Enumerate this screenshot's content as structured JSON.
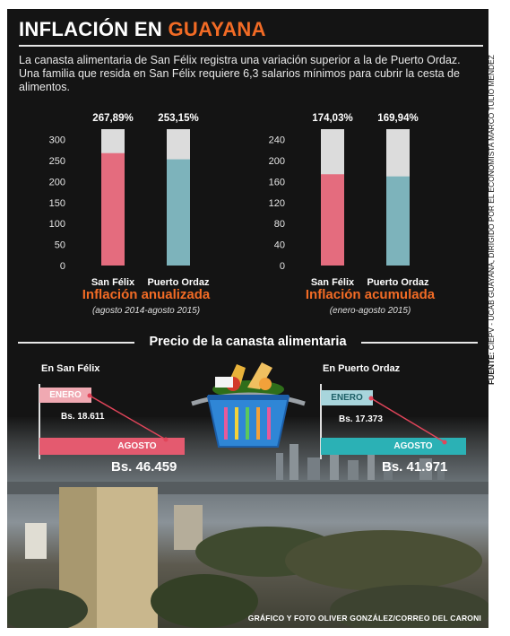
{
  "title_main": "INFLACIÓN EN",
  "title_accent": "GUAYANA",
  "intro": "La canasta alimentaria de San Félix registra una variación superior a la de Puerto Ordaz. Una familia que resida en San Félix requiere 6,3 salarios mínimos para cubrir la cesta de alimentos.",
  "source_label": "FUENTE:",
  "source_text": "CIEPV - UCAB GUAYANA, DIRIGIDO POR EL ECONOMISTA MARCO TULIO MÉNDEZ",
  "colors": {
    "accent": "#f26b25",
    "san_felix": "#e46c7e",
    "puerto_ordaz": "#7db3bb",
    "bar_background": "#dcdcdc"
  },
  "chart_data": [
    {
      "type": "bar",
      "title": "Inflación anualizada",
      "subtitle": "(agosto 2014-agosto 2015)",
      "categories": [
        "San Félix",
        "Puerto Ordaz"
      ],
      "values": [
        267.89,
        253.15
      ],
      "value_labels": [
        "267,89%",
        "253,15%"
      ],
      "ylim": [
        0,
        325
      ],
      "yticks": [
        0,
        50,
        100,
        150,
        200,
        250,
        300
      ],
      "grid": false
    },
    {
      "type": "bar",
      "title": "Inflación acumulada",
      "subtitle": "(enero-agosto 2015)",
      "categories": [
        "San Félix",
        "Puerto Ordaz"
      ],
      "values": [
        174.03,
        169.94
      ],
      "value_labels": [
        "174,03%",
        "169,94%"
      ],
      "ylim": [
        0,
        260
      ],
      "yticks": [
        0,
        40,
        80,
        120,
        160,
        200,
        240
      ],
      "grid": false
    }
  ],
  "basket": {
    "section_title": "Precio de la canasta alimentaria",
    "san_felix": {
      "label": "En San Félix",
      "enero_label": "ENERO",
      "enero_price": "Bs. 18.611",
      "agosto_label": "AGOSTO",
      "agosto_price": "Bs. 46.459"
    },
    "puerto_ordaz": {
      "label": "En Puerto Ordaz",
      "enero_label": "ENERO",
      "enero_price": "Bs. 17.373",
      "agosto_label": "AGOSTO",
      "agosto_price": "Bs. 41.971"
    },
    "icon": "shopping-basket-icon"
  },
  "credit": "GRÁFICO Y FOTO OLIVER GONZÁLEZ/CORREO DEL CARONI"
}
